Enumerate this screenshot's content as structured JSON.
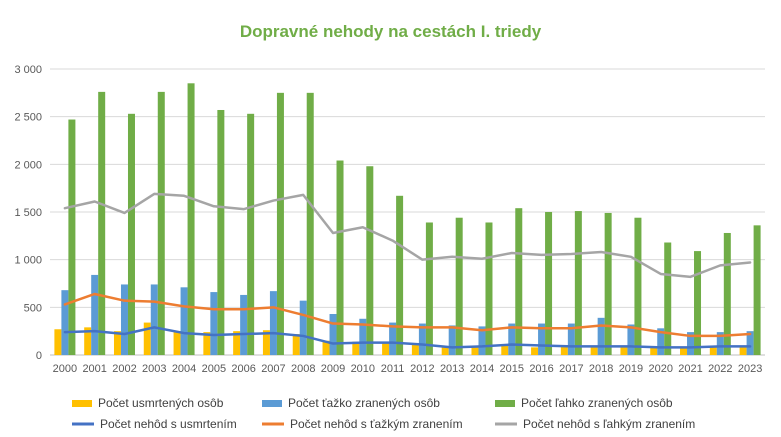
{
  "chart_data": {
    "type": "bar",
    "title": "Dopravné nehody na cestách I. triedy",
    "categories": [
      "2000",
      "2001",
      "2002",
      "2003",
      "2004",
      "2005",
      "2006",
      "2007",
      "2008",
      "2009",
      "2010",
      "2011",
      "2012",
      "2013",
      "2014",
      "2015",
      "2016",
      "2017",
      "2018",
      "2019",
      "2020",
      "2021",
      "2022",
      "2023"
    ],
    "ylim": [
      0,
      3000
    ],
    "yticks": [
      0,
      500,
      1000,
      1500,
      2000,
      2500,
      3000
    ],
    "ytick_labels": [
      "0",
      "500",
      "1 000",
      "1 500",
      "2 000",
      "2 500",
      "3 000"
    ],
    "grid": true,
    "legend_position": "bottom",
    "bar_series": [
      {
        "name": "Počet usmrtených osôb",
        "color": "#ffc000",
        "values": [
          270,
          290,
          250,
          340,
          250,
          240,
          250,
          260,
          220,
          150,
          140,
          140,
          110,
          80,
          80,
          100,
          80,
          90,
          80,
          100,
          80,
          80,
          80,
          90
        ]
      },
      {
        "name": "Počet ťažko zranených osôb",
        "color": "#5b9bd5",
        "values": [
          680,
          840,
          740,
          740,
          710,
          660,
          630,
          670,
          570,
          430,
          380,
          340,
          330,
          310,
          300,
          330,
          330,
          330,
          390,
          320,
          280,
          240,
          240,
          250
        ]
      },
      {
        "name": "Počet ľahko zranených osôb",
        "color": "#70ad47",
        "values": [
          2470,
          2760,
          2530,
          2760,
          2850,
          2570,
          2530,
          2750,
          2750,
          2040,
          1980,
          1670,
          1390,
          1440,
          1390,
          1540,
          1500,
          1510,
          1490,
          1440,
          1180,
          1090,
          1280,
          1360
        ]
      }
    ],
    "line_series": [
      {
        "name": "Počet nehôd s usmrtením",
        "color": "#4472c4",
        "values": [
          240,
          250,
          220,
          290,
          230,
          210,
          220,
          230,
          200,
          120,
          130,
          130,
          110,
          80,
          90,
          110,
          100,
          90,
          90,
          90,
          80,
          80,
          90,
          90
        ]
      },
      {
        "name": "Počet nehôd s ťažkým zranením",
        "color": "#ed7d31",
        "values": [
          530,
          640,
          570,
          560,
          510,
          480,
          480,
          500,
          420,
          330,
          320,
          300,
          290,
          290,
          260,
          290,
          280,
          280,
          310,
          290,
          240,
          200,
          200,
          220
        ]
      },
      {
        "name": "Počet nehôd s ľahkým zranením",
        "color": "#a5a5a5",
        "values": [
          1540,
          1610,
          1490,
          1690,
          1670,
          1560,
          1530,
          1620,
          1680,
          1280,
          1340,
          1200,
          1000,
          1030,
          1010,
          1070,
          1050,
          1060,
          1080,
          1030,
          850,
          820,
          940,
          970
        ]
      }
    ]
  }
}
